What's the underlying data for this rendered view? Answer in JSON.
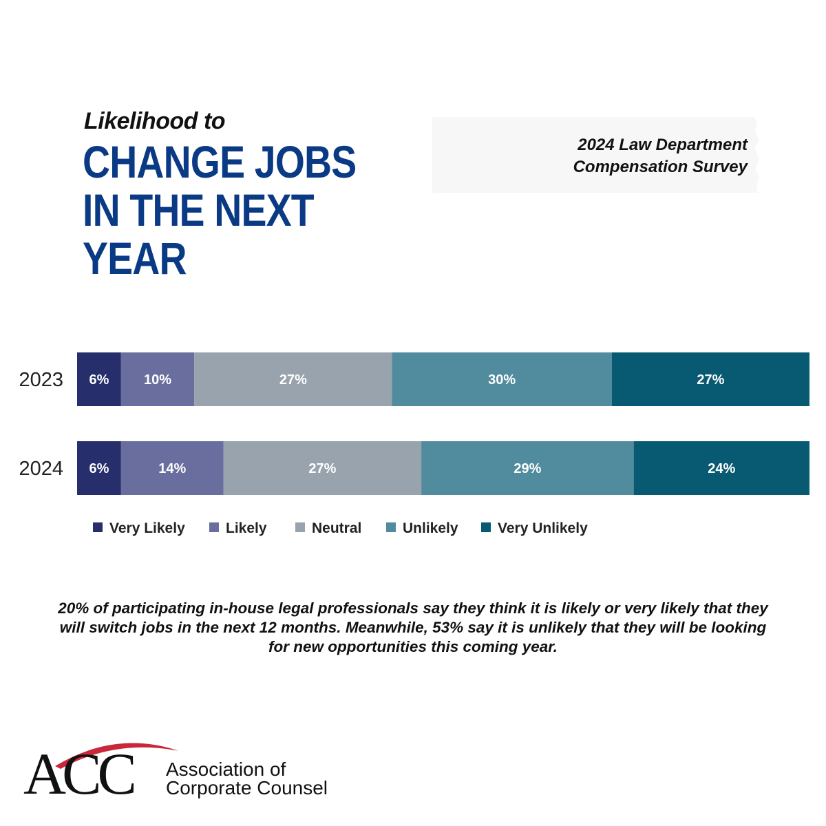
{
  "title": {
    "kicker": "Likelihood to",
    "main_lines": [
      "CHANGE JOBS",
      "IN THE NEXT",
      "YEAR"
    ]
  },
  "survey_note": {
    "line1": "2024 Law Department",
    "line2": "Compensation Survey"
  },
  "chart_data": {
    "type": "bar",
    "orientation": "horizontal",
    "stacked": true,
    "categories": [
      "2023",
      "2024"
    ],
    "series": [
      {
        "name": "Very Likely",
        "values": [
          6,
          6
        ],
        "labels": [
          "6%",
          "6%"
        ],
        "color": "#262e6c"
      },
      {
        "name": "Likely",
        "values": [
          10,
          14
        ],
        "labels": [
          "10%",
          "14%"
        ],
        "color": "#696e9e"
      },
      {
        "name": "Neutral",
        "values": [
          27,
          27
        ],
        "labels": [
          "27%",
          "27%"
        ],
        "color": "#99a3ad"
      },
      {
        "name": "Unlikely",
        "values": [
          30,
          29
        ],
        "labels": [
          "30%",
          "29%"
        ],
        "color": "#508c9e"
      },
      {
        "name": "Very Unlikely",
        "values": [
          27,
          24
        ],
        "labels": [
          "27%",
          "24%"
        ],
        "color": "#075a72"
      }
    ],
    "xlim": [
      0,
      100
    ],
    "legend_position": "bottom",
    "grid": false
  },
  "caption": "20% of participating in-house legal professionals say they think it is likely or very likely that they will switch jobs in the next 12 months. Meanwhile, 53% say it is unlikely that they will be looking for new opportunities this coming year.",
  "logo": {
    "mark": "ACC",
    "line1": "Association of",
    "line2": "Corporate Counsel",
    "arc_color": "#c8283a",
    "text_color": "#111111"
  }
}
